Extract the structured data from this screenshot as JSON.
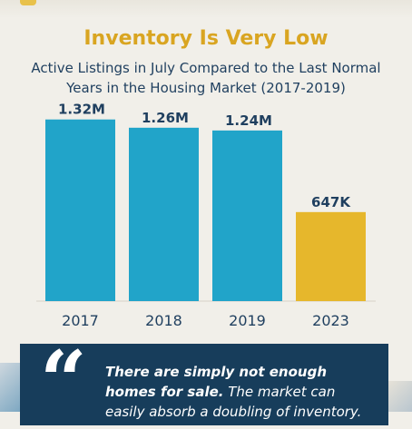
{
  "title": "Inventory Is Very Low",
  "subtitle": "Active Listings in July Compared to the Last Normal Years in the Housing Market (2017-2019)",
  "colors": {
    "background": "#f1efe9",
    "title": "#d9a521",
    "text": "#1f3f5f",
    "bar_primary": "#21a4c9",
    "bar_highlight": "#e6b72c",
    "quote_bg": "#173d5b"
  },
  "chart_data": {
    "type": "bar",
    "categories": [
      "2017",
      "2018",
      "2019",
      "2023"
    ],
    "values": [
      1320000,
      1260000,
      1240000,
      647000
    ],
    "data_labels": [
      "1.32M",
      "1.26M",
      "1.24M",
      "647K"
    ],
    "highlight_category": "2023",
    "ylim": [
      0,
      1450000
    ],
    "grid": false,
    "title": "Inventory Is Very Low",
    "xlabel": "",
    "ylabel": ""
  },
  "quote": {
    "mark": "“",
    "bold_text": "There are simply not enough homes for sale.",
    "rest_text": " The market can easily absorb a doubling of inventory."
  }
}
